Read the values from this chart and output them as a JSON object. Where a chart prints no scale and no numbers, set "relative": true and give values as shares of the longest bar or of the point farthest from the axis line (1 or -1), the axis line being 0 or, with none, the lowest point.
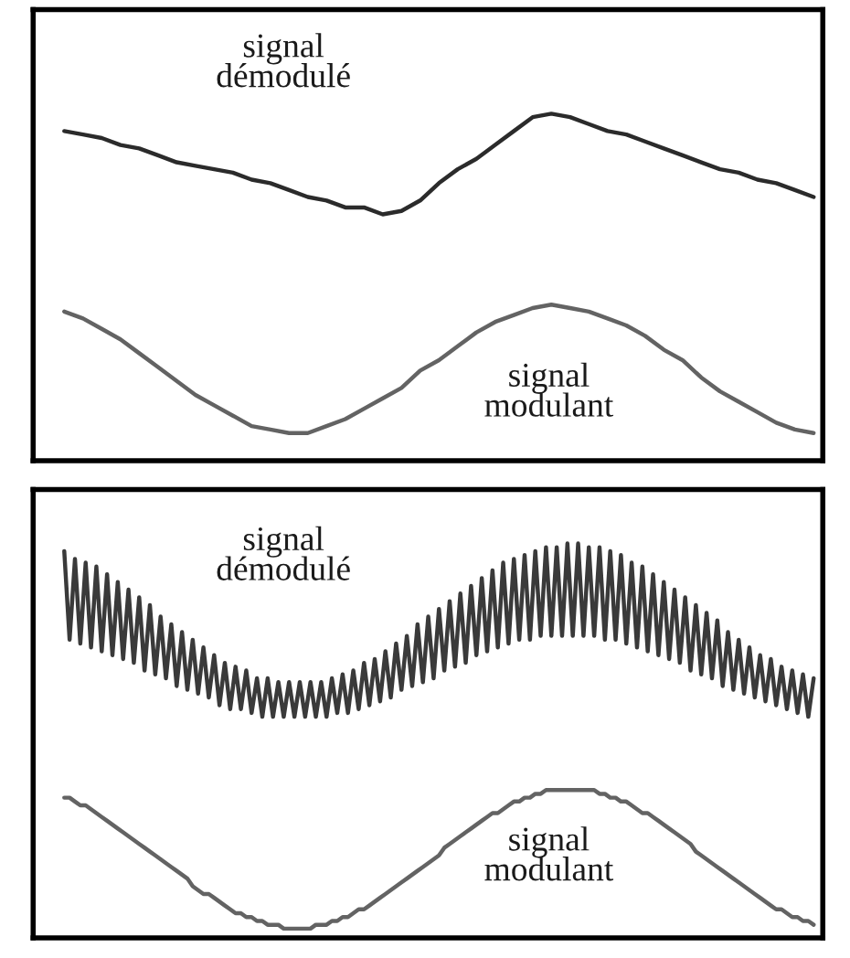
{
  "chart_data": [
    {
      "type": "line",
      "relative": true,
      "categories": [
        null,
        null,
        null,
        null,
        null,
        null,
        null,
        null,
        null,
        null,
        null,
        null,
        null,
        null,
        null,
        null,
        null,
        null,
        null,
        null,
        null,
        null,
        null,
        null,
        null,
        null,
        null,
        null,
        null,
        null,
        null,
        null,
        null,
        null,
        null,
        null,
        null,
        null,
        null,
        null,
        null
      ],
      "series": [
        {
          "name": "signal\ndémodulé",
          "color": "#2b2b2b",
          "values": [
            0.95,
            0.94,
            0.93,
            0.91,
            0.9,
            0.88,
            0.86,
            0.85,
            0.84,
            0.83,
            0.81,
            0.8,
            0.78,
            0.76,
            0.75,
            0.73,
            0.73,
            0.71,
            0.72,
            0.75,
            0.8,
            0.84,
            0.87,
            0.91,
            0.95,
            0.99,
            1.0,
            0.99,
            0.97,
            0.95,
            0.94,
            0.92,
            0.9,
            0.88,
            0.86,
            0.84,
            0.83,
            0.81,
            0.8,
            0.78,
            0.76
          ]
        },
        {
          "name": "signal\nmodulant",
          "color": "#636363",
          "values": [
            0.43,
            0.41,
            0.38,
            0.35,
            0.31,
            0.27,
            0.23,
            0.19,
            0.16,
            0.13,
            0.1,
            0.09,
            0.08,
            0.08,
            0.1,
            0.12,
            0.15,
            0.18,
            0.21,
            0.26,
            0.29,
            0.33,
            0.37,
            0.4,
            0.42,
            0.44,
            0.45,
            0.44,
            0.43,
            0.41,
            0.39,
            0.36,
            0.32,
            0.29,
            0.24,
            0.2,
            0.17,
            0.14,
            0.11,
            0.09,
            0.08
          ]
        }
      ]
    },
    {
      "type": "line",
      "relative": true,
      "categories": [
        null,
        null,
        null,
        null,
        null,
        null,
        null,
        null,
        null,
        null,
        null,
        null,
        null,
        null,
        null,
        null,
        null,
        null,
        null,
        null,
        null,
        null,
        null,
        null,
        null,
        null,
        null,
        null,
        null,
        null,
        null,
        null,
        null,
        null,
        null,
        null,
        null,
        null,
        null,
        null,
        null,
        null,
        null,
        null,
        null,
        null,
        null,
        null,
        null,
        null,
        null,
        null,
        null,
        null,
        null,
        null,
        null,
        null,
        null,
        null,
        null,
        null,
        null,
        null,
        null,
        null,
        null,
        null,
        null,
        null,
        null,
        null,
        null,
        null,
        null,
        null,
        null,
        null,
        null,
        null,
        null,
        null,
        null,
        null,
        null,
        null,
        null,
        null,
        null,
        null,
        null,
        null,
        null,
        null,
        null,
        null,
        null,
        null,
        null,
        null,
        null,
        null,
        null,
        null,
        null,
        null,
        null,
        null,
        null,
        null,
        null,
        null,
        null,
        null,
        null,
        null,
        null,
        null,
        null,
        null,
        null,
        null,
        null,
        null,
        null,
        null,
        null,
        null,
        null,
        null,
        null,
        null,
        null,
        null,
        null,
        null,
        null,
        null,
        null,
        null,
        null
      ],
      "series": [
        {
          "name": "signal\ndémodulé",
          "color": "#3a3a3a",
          "values": [
            0.98,
            0.75,
            0.96,
            0.74,
            0.95,
            0.73,
            0.94,
            0.72,
            0.92,
            0.71,
            0.9,
            0.7,
            0.88,
            0.69,
            0.86,
            0.67,
            0.84,
            0.66,
            0.81,
            0.65,
            0.79,
            0.63,
            0.77,
            0.62,
            0.75,
            0.61,
            0.73,
            0.6,
            0.71,
            0.58,
            0.69,
            0.57,
            0.68,
            0.57,
            0.67,
            0.56,
            0.65,
            0.55,
            0.65,
            0.55,
            0.64,
            0.55,
            0.64,
            0.55,
            0.64,
            0.55,
            0.64,
            0.55,
            0.64,
            0.55,
            0.65,
            0.56,
            0.66,
            0.56,
            0.67,
            0.57,
            0.69,
            0.58,
            0.7,
            0.59,
            0.72,
            0.6,
            0.74,
            0.62,
            0.76,
            0.63,
            0.79,
            0.64,
            0.81,
            0.65,
            0.83,
            0.67,
            0.85,
            0.68,
            0.87,
            0.69,
            0.89,
            0.71,
            0.91,
            0.72,
            0.93,
            0.73,
            0.95,
            0.74,
            0.96,
            0.75,
            0.97,
            0.75,
            0.98,
            0.76,
            0.99,
            0.76,
            0.99,
            0.76,
            1.0,
            0.76,
            1.0,
            0.76,
            0.99,
            0.76,
            0.99,
            0.75,
            0.98,
            0.75,
            0.97,
            0.74,
            0.95,
            0.73,
            0.94,
            0.72,
            0.92,
            0.71,
            0.9,
            0.7,
            0.88,
            0.69,
            0.86,
            0.67,
            0.84,
            0.66,
            0.82,
            0.65,
            0.8,
            0.63,
            0.77,
            0.62,
            0.75,
            0.61,
            0.73,
            0.6,
            0.71,
            0.59,
            0.7,
            0.58,
            0.68,
            0.57,
            0.67,
            0.56,
            0.66,
            0.55,
            0.65
          ]
        },
        {
          "name": "signal\nmodulant",
          "color": "#636363",
          "values": [
            0.34,
            0.34,
            0.33,
            0.32,
            0.32,
            0.31,
            0.3,
            0.29,
            0.28,
            0.27,
            0.26,
            0.25,
            0.24,
            0.23,
            0.22,
            0.21,
            0.2,
            0.19,
            0.18,
            0.17,
            0.16,
            0.15,
            0.14,
            0.13,
            0.11,
            0.1,
            0.09,
            0.09,
            0.08,
            0.07,
            0.06,
            0.05,
            0.04,
            0.04,
            0.03,
            0.03,
            0.02,
            0.02,
            0.01,
            0.01,
            0.01,
            0.0,
            0.0,
            0.0,
            0.0,
            0.0,
            0.0,
            0.01,
            0.01,
            0.01,
            0.02,
            0.02,
            0.03,
            0.03,
            0.04,
            0.05,
            0.05,
            0.06,
            0.07,
            0.08,
            0.09,
            0.1,
            0.11,
            0.12,
            0.13,
            0.14,
            0.15,
            0.16,
            0.17,
            0.18,
            0.19,
            0.21,
            0.22,
            0.23,
            0.24,
            0.25,
            0.26,
            0.27,
            0.28,
            0.29,
            0.3,
            0.3,
            0.31,
            0.32,
            0.33,
            0.33,
            0.34,
            0.34,
            0.35,
            0.35,
            0.36,
            0.36,
            0.36,
            0.36,
            0.36,
            0.36,
            0.36,
            0.36,
            0.36,
            0.36,
            0.35,
            0.35,
            0.34,
            0.34,
            0.33,
            0.33,
            0.32,
            0.31,
            0.3,
            0.3,
            0.29,
            0.28,
            0.27,
            0.26,
            0.25,
            0.24,
            0.23,
            0.22,
            0.2,
            0.19,
            0.18,
            0.17,
            0.16,
            0.15,
            0.14,
            0.13,
            0.12,
            0.11,
            0.1,
            0.09,
            0.08,
            0.07,
            0.06,
            0.05,
            0.05,
            0.04,
            0.03,
            0.03,
            0.02,
            0.02,
            0.01
          ]
        }
      ]
    }
  ]
}
